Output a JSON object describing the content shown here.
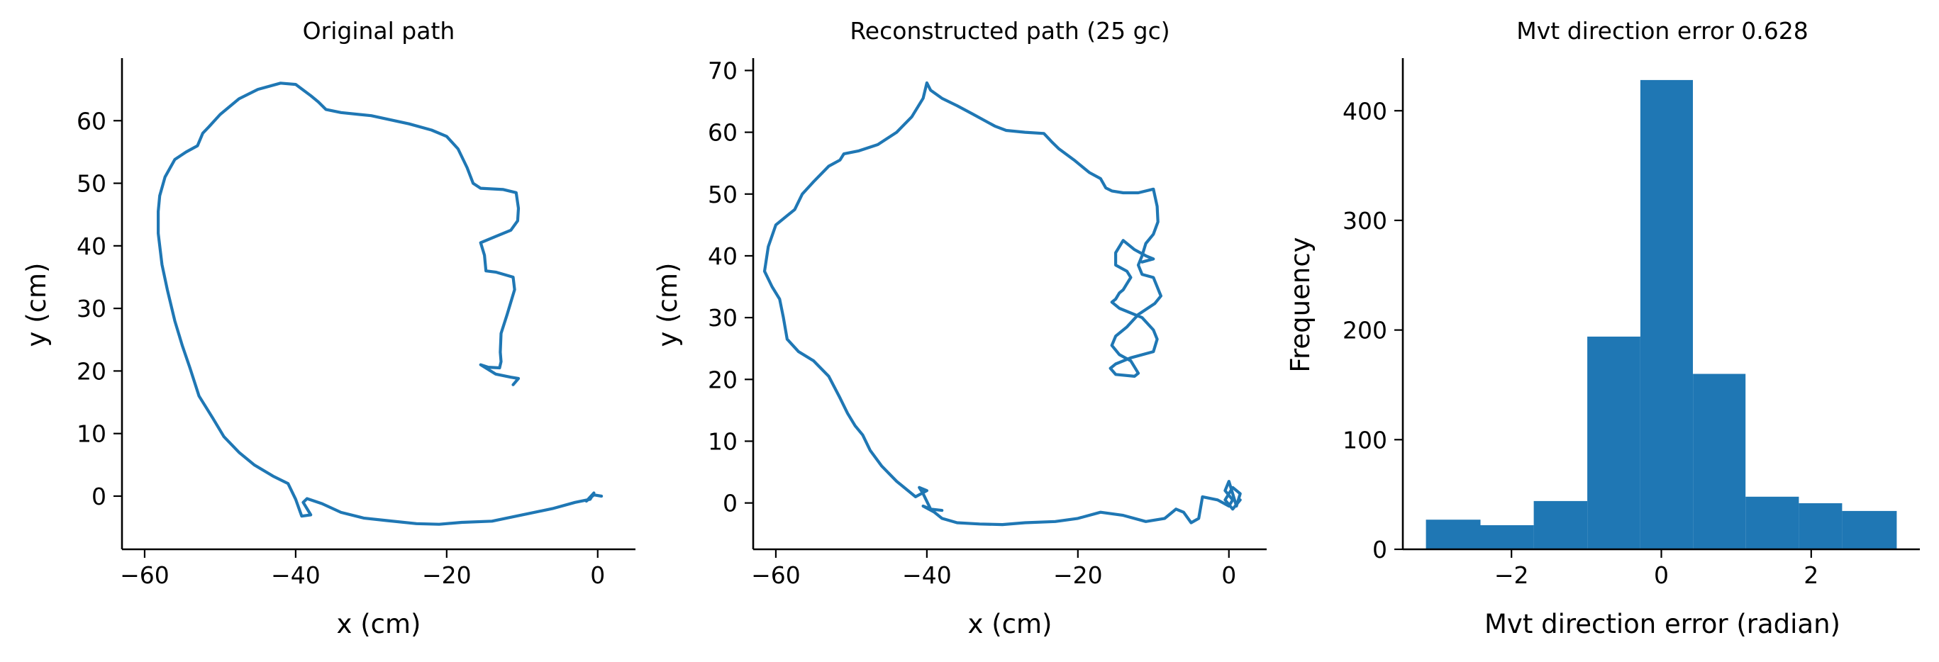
{
  "colors": {
    "line": "#1f77b4",
    "bar": "#1f77b4",
    "axis": "#000000"
  },
  "chart_data": [
    {
      "type": "line",
      "title": "Original path",
      "xlabel": "x (cm)",
      "ylabel": "y (cm)",
      "xlim": [
        -63,
        5
      ],
      "ylim": [
        -8.5,
        70
      ],
      "xticks": [
        -60,
        -40,
        -20,
        0
      ],
      "yticks": [
        0,
        10,
        20,
        30,
        40,
        50,
        60
      ],
      "xtick_labels": [
        "−60",
        "−40",
        "−20",
        "0"
      ],
      "ytick_labels": [
        "0",
        "10",
        "20",
        "30",
        "40",
        "50",
        "60"
      ],
      "grid": false,
      "series": [
        {
          "x": [
            0.5,
            -0.5,
            -1.5,
            -0.5,
            -1.0,
            -3.0,
            -6.0,
            -10.0,
            -14.0,
            -18.0,
            -21.0,
            -24.0,
            -28.0,
            -31.0,
            -34.0,
            -36.5,
            -38.0,
            -38.5,
            -39.0,
            -38.0,
            -39.2,
            -40.0,
            -41.0,
            -43.0,
            -45.5,
            -47.5,
            -49.5,
            -51.0,
            -52.8,
            -54.0,
            -55.0,
            -56.0,
            -57.0,
            -57.7,
            -58.2,
            -58.2,
            -58.0,
            -57.3,
            -56.0,
            -54.5,
            -53.0,
            -52.3,
            -51.5,
            -50.0,
            -47.5,
            -45.0,
            -42.0,
            -40.0,
            -38.0,
            -37.0,
            -36.0,
            -34.0,
            -30.0,
            -25.0,
            -22.0,
            -20.0,
            -18.5,
            -17.3,
            -16.5,
            -15.5,
            -12.5,
            -10.8,
            -10.5,
            -10.6,
            -11.5,
            -13.5,
            -15.5,
            -15.0,
            -14.8,
            -13.5,
            -11.2,
            -11.0,
            -12.0,
            -12.8,
            -12.9,
            -12.8,
            -13.0,
            -14.5,
            -15.5,
            -13.5,
            -11.5,
            -10.5,
            -11.2
          ],
          "y": [
            0.0,
            0.2,
            -0.8,
            0.5,
            -0.5,
            -1.0,
            -2.0,
            -3.0,
            -4.0,
            -4.2,
            -4.5,
            -4.4,
            -3.9,
            -3.5,
            -2.6,
            -1.2,
            -0.6,
            -0.4,
            -1.0,
            -3.0,
            -3.2,
            -0.5,
            2.0,
            3.2,
            5.0,
            7.0,
            9.5,
            12.5,
            16.0,
            20.5,
            24.0,
            28.0,
            33.0,
            37.0,
            42.0,
            45.5,
            48.0,
            51.0,
            53.8,
            55.0,
            56.0,
            58.0,
            59.0,
            61.0,
            63.5,
            65.0,
            66.0,
            65.8,
            64.0,
            63.0,
            61.8,
            61.3,
            60.8,
            59.5,
            58.5,
            57.5,
            55.5,
            52.5,
            50.0,
            49.2,
            49.0,
            48.5,
            46.0,
            44.0,
            42.5,
            41.5,
            40.5,
            38.5,
            36.0,
            35.8,
            35.0,
            33.0,
            29.0,
            26.0,
            23.0,
            21.5,
            20.5,
            20.6,
            21.0,
            19.5,
            19.0,
            18.8,
            17.8
          ]
        }
      ]
    },
    {
      "type": "line",
      "title": "Reconstructed path (25 gc)",
      "xlabel": "x (cm)",
      "ylabel": "y (cm)",
      "xlim": [
        -63,
        5
      ],
      "ylim": [
        -7.5,
        72
      ],
      "xticks": [
        -60,
        -40,
        -20,
        0
      ],
      "yticks": [
        0,
        10,
        20,
        30,
        40,
        50,
        60,
        70
      ],
      "xtick_labels": [
        "−60",
        "−40",
        "−20",
        "0"
      ],
      "ytick_labels": [
        "0",
        "10",
        "20",
        "30",
        "40",
        "50",
        "60",
        "70"
      ],
      "grid": false,
      "series": [
        {
          "x": [
            1.5,
            0.5,
            -0.5,
            0.5,
            1.5,
            1.0,
            0.0,
            -0.5,
            0.5,
            0.0,
            -1.5,
            -3.5,
            -4.0,
            -5.0,
            -6.0,
            -7.0,
            -8.5,
            -11.0,
            -14.0,
            -17.0,
            -20.0,
            -23.0,
            -27.0,
            -30.0,
            -33.0,
            -36.0,
            -38.0,
            -39.0,
            -40.5,
            -39.5,
            -38.0,
            -39.5,
            -40.5,
            -41.0,
            -40.0,
            -41.5,
            -44.0,
            -46.0,
            -47.5,
            -48.5,
            -49.5,
            -50.5,
            -51.5,
            -53.0,
            -55.0,
            -57.0,
            -58.5,
            -59.0,
            -59.5,
            -60.5,
            -61.5,
            -61.0,
            -60.0,
            -58.5,
            -57.5,
            -56.5,
            -55.0,
            -53.0,
            -51.5,
            -51.0,
            -49.0,
            -46.5,
            -44.0,
            -42.0,
            -40.5,
            -40.0,
            -39.5,
            -38.0,
            -36.0,
            -34.0,
            -32.5,
            -31.0,
            -29.5,
            -27.0,
            -24.5,
            -23.5,
            -22.5,
            -20.5,
            -18.5,
            -17.0,
            -16.3,
            -15.5,
            -14.0,
            -12.0,
            -10.0,
            -9.5,
            -9.4,
            -10.0,
            -11.0,
            -11.5,
            -12.0,
            -11.5,
            -10.0,
            -9.0,
            -9.8,
            -12.0,
            -13.5,
            -15.0,
            -15.5,
            -14.5,
            -13.0,
            -12.5,
            -12.0,
            -12.5,
            -15.0,
            -15.7,
            -15.0,
            -13.0,
            -10.0,
            -9.5,
            -10.0,
            -11.5,
            -14.5,
            -15.5,
            -15.0,
            -14.5,
            -14.0,
            -13.5,
            -13.0,
            -13.5,
            -15.0,
            -15.0,
            -14.0,
            -12.5,
            -11.0,
            -10.0,
            -11.5
          ],
          "y": [
            0.5,
            -1.0,
            0.5,
            2.5,
            1.5,
            -0.5,
            3.5,
            2.0,
            0.5,
            -0.5,
            0.5,
            1.0,
            -2.5,
            -3.2,
            -1.5,
            -1.0,
            -2.5,
            -3.0,
            -2.0,
            -1.5,
            -2.5,
            -3.0,
            -3.2,
            -3.5,
            -3.4,
            -3.2,
            -2.5,
            -1.5,
            -0.5,
            -1.0,
            -1.2,
            -1.0,
            1.5,
            2.5,
            2.0,
            1.0,
            3.5,
            6.0,
            8.5,
            11.0,
            12.5,
            14.5,
            17.0,
            20.5,
            23.0,
            24.5,
            26.5,
            30.0,
            33.0,
            35.0,
            37.5,
            41.5,
            45.0,
            46.5,
            47.5,
            50.0,
            52.0,
            54.5,
            55.5,
            56.5,
            57.0,
            58.0,
            60.0,
            62.5,
            65.5,
            68.0,
            66.8,
            65.5,
            64.3,
            63.0,
            62.0,
            61.0,
            60.3,
            60.0,
            59.8,
            58.5,
            57.3,
            55.5,
            53.5,
            52.5,
            51.0,
            50.5,
            50.2,
            50.2,
            50.8,
            48.0,
            45.5,
            43.5,
            42.0,
            40.0,
            38.5,
            37.0,
            36.5,
            33.5,
            32.3,
            30.5,
            28.5,
            27.0,
            25.5,
            24.0,
            23.0,
            22.0,
            21.0,
            20.5,
            20.8,
            21.8,
            22.5,
            23.5,
            24.5,
            26.5,
            28.0,
            30.0,
            31.5,
            32.5,
            33.0,
            34.0,
            34.5,
            35.5,
            36.5,
            37.5,
            38.5,
            40.5,
            42.5,
            41.0,
            40.0,
            39.5,
            39.0
          ]
        }
      ]
    },
    {
      "type": "bar",
      "subtype": "histogram",
      "title": "Mvt direction error 0.628",
      "xlabel": "Mvt direction error (radian)",
      "ylabel": "Frequency",
      "xlim": [
        -3.45,
        3.45
      ],
      "ylim": [
        0,
        448
      ],
      "xticks": [
        -2,
        0,
        2
      ],
      "yticks": [
        0,
        100,
        200,
        300,
        400
      ],
      "xtick_labels": [
        "−2",
        "0",
        "2"
      ],
      "ytick_labels": [
        "0",
        "100",
        "200",
        "300",
        "400"
      ],
      "grid": false,
      "bin_edges": [
        -3.1416,
        -2.4133,
        -1.7024,
        -0.9883,
        -0.2799,
        0.4217,
        1.1233,
        1.8354,
        2.4125,
        3.1416
      ],
      "values": [
        27,
        22,
        44,
        194,
        428,
        160,
        48,
        42,
        35
      ]
    }
  ]
}
